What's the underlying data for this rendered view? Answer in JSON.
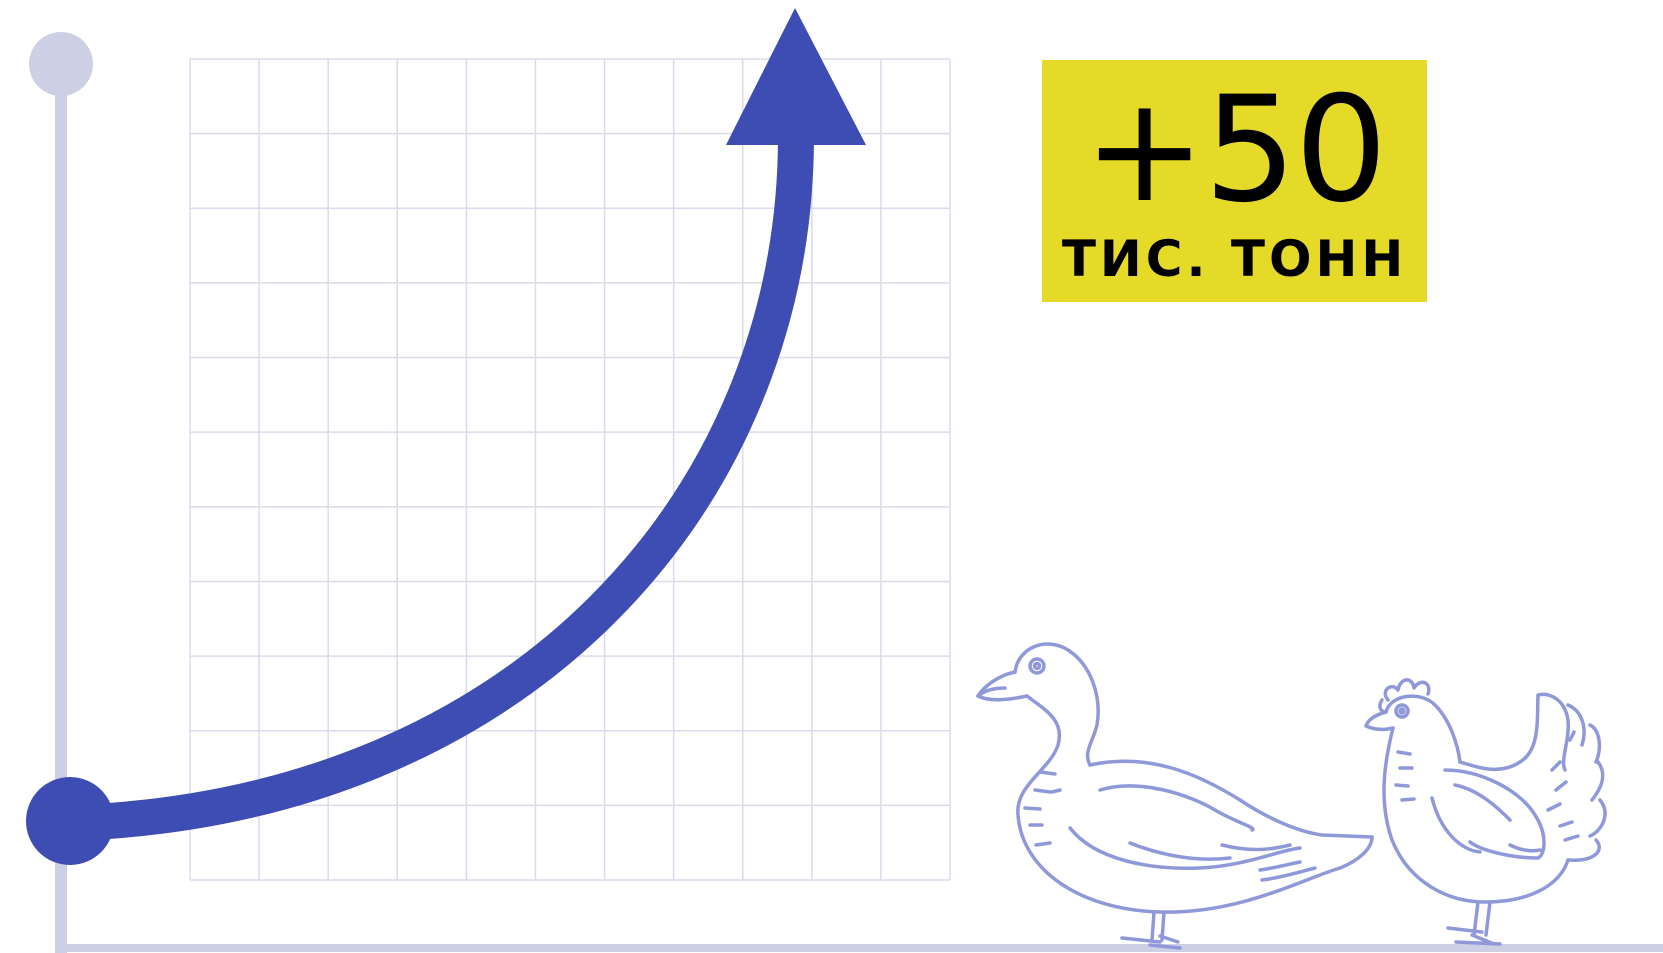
{
  "colors": {
    "background": "#ffffff",
    "axis": "#cdd0e4",
    "grid": "#d9dbec",
    "curve": "#3d4db3",
    "badge": "#e4da27",
    "badge_text": "#000000",
    "illustration": "#8f99d9"
  },
  "badge": {
    "value": "+50",
    "unit": "ТИС. ТОНН"
  },
  "illustrations": {
    "left": "duck-icon",
    "right": "hen-icon"
  }
}
